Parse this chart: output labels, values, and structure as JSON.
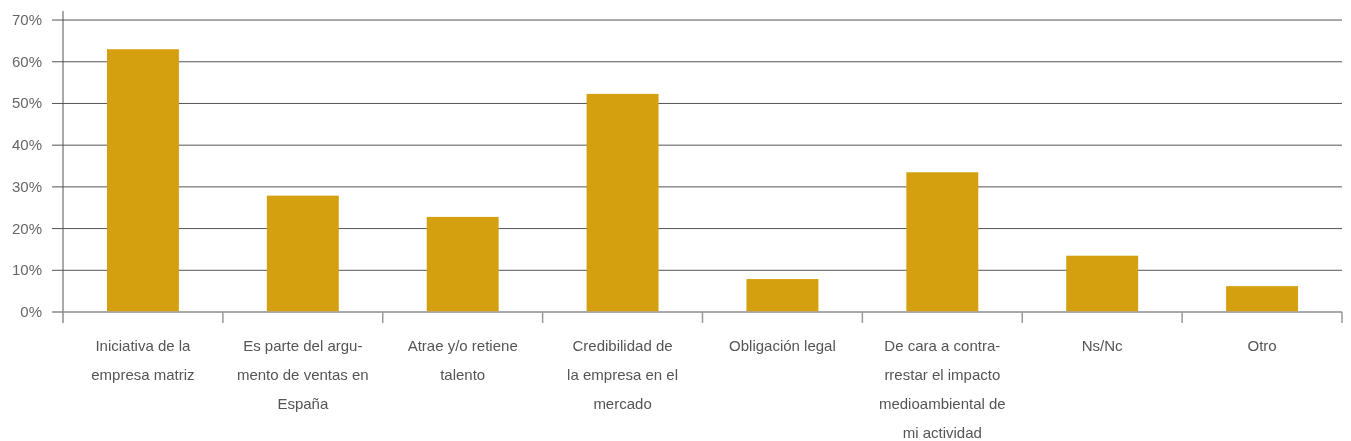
{
  "chart_data": {
    "type": "bar",
    "categories": [
      "Iniciativa de la\nempresa matriz",
      "Es parte del argu-\nmento de ventas en\nEspaña",
      "Atrae y/o retiene\ntalento",
      "Credibilidad de\nla empresa en el\nmercado",
      "Obligación legal",
      "De cara a contra-\nrrestar el impacto\nmedioambiental de\nmi actividad",
      "Ns/Nc",
      "Otro"
    ],
    "values": [
      63,
      27.9,
      22.8,
      52.3,
      7.9,
      33.5,
      13.5,
      6.2
    ],
    "color": "#d4a010",
    "ylim": [
      0,
      72
    ],
    "yticks": [
      {
        "value": 0,
        "label": "0%"
      },
      {
        "value": 10,
        "label": "10%"
      },
      {
        "value": 20,
        "label": "20%"
      },
      {
        "value": 30,
        "label": "30%"
      },
      {
        "value": 40,
        "label": "40%"
      },
      {
        "value": 50,
        "label": "50%"
      },
      {
        "value": 60,
        "label": "60%"
      },
      {
        "value": 70,
        "label": "70%"
      }
    ],
    "grid": "y"
  }
}
